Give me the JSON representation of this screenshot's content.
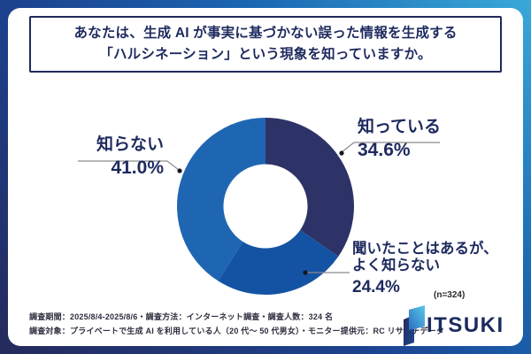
{
  "title": {
    "line1": "あなたは、生成 AI が事実に基づかない誤った情報を生成する",
    "line2": "「ハルシネーション」という現象を知っていますか。"
  },
  "chart_data": {
    "type": "pie",
    "subtype": "donut",
    "title": "あなたは、生成 AI が事実に基づかない誤った情報を生成する「ハルシネーション」という現象を知っていますか。",
    "unit": "%",
    "sample_note": "(n=324)",
    "start_angle_deg": 0,
    "direction": "clockwise",
    "segments": [
      {
        "label": "知っている",
        "value": 34.6,
        "color": "#2d3366"
      },
      {
        "label": "聞いたことはあるが、よく知らない",
        "value": 24.4,
        "color": "#1453a4"
      },
      {
        "label": "知らない",
        "value": 41.0,
        "color": "#1e66b2"
      }
    ]
  },
  "labels": {
    "know": {
      "name": "知っている",
      "pct": "34.6%"
    },
    "heard": {
      "name_line1": "聞いたことはあるが、",
      "name_line2": "よく知らない",
      "pct": "24.4%"
    },
    "dont_know": {
      "name": "知らない",
      "pct": "41.0%"
    },
    "n_note": "(n=324)"
  },
  "footer": {
    "line1": "調査期間：2025/8/4-2025/8/6・調査方法：インターネット調査・調査人数：324 名",
    "line2": "調査対象：プライベートで生成 AI を利用している人（20 代〜 50 代男女）・モニター提供元：RC リサーチデータ"
  },
  "logo": {
    "text": "ITSUKI"
  },
  "colors": {
    "frame_gradient_start": "#252a5c",
    "frame_gradient_end": "#39a9d9",
    "text_navy": "#1e2a5e",
    "leader_line": "#8c8c8c",
    "dot": "#15151f"
  }
}
